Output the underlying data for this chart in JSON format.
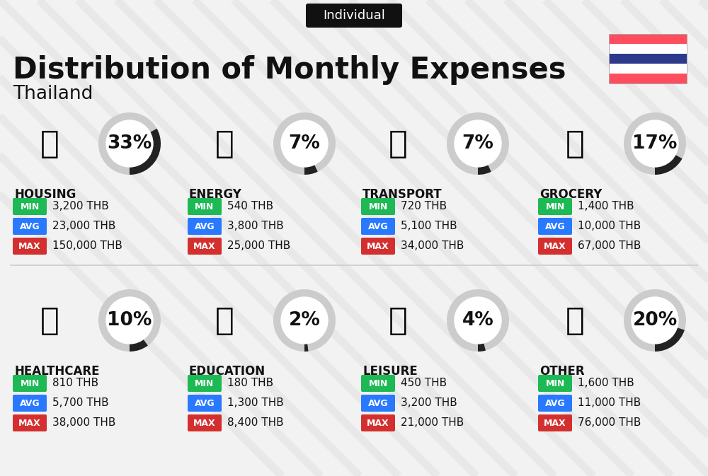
{
  "title": "Distribution of Monthly Expenses",
  "subtitle": "Thailand",
  "tag": "Individual",
  "background_color": "#f2f2f2",
  "categories": [
    {
      "name": "HOUSING",
      "percent": 33,
      "min": "3,200 THB",
      "avg": "23,000 THB",
      "max": "150,000 THB",
      "row": 0,
      "col": 0
    },
    {
      "name": "ENERGY",
      "percent": 7,
      "min": "540 THB",
      "avg": "3,800 THB",
      "max": "25,000 THB",
      "row": 0,
      "col": 1
    },
    {
      "name": "TRANSPORT",
      "percent": 7,
      "min": "720 THB",
      "avg": "5,100 THB",
      "max": "34,000 THB",
      "row": 0,
      "col": 2
    },
    {
      "name": "GROCERY",
      "percent": 17,
      "min": "1,400 THB",
      "avg": "10,000 THB",
      "max": "67,000 THB",
      "row": 0,
      "col": 3
    },
    {
      "name": "HEALTHCARE",
      "percent": 10,
      "min": "810 THB",
      "avg": "5,700 THB",
      "max": "38,000 THB",
      "row": 1,
      "col": 0
    },
    {
      "name": "EDUCATION",
      "percent": 2,
      "min": "180 THB",
      "avg": "1,300 THB",
      "max": "8,400 THB",
      "row": 1,
      "col": 1
    },
    {
      "name": "LEISURE",
      "percent": 4,
      "min": "450 THB",
      "avg": "3,200 THB",
      "max": "21,000 THB",
      "row": 1,
      "col": 2
    },
    {
      "name": "OTHER",
      "percent": 20,
      "min": "1,600 THB",
      "avg": "11,000 THB",
      "max": "76,000 THB",
      "row": 1,
      "col": 3
    }
  ],
  "min_color": "#1db954",
  "avg_color": "#2979ff",
  "max_color": "#d32f2f",
  "text_color": "#111111",
  "arc_color": "#222222",
  "arc_bg_color": "#cccccc",
  "flag_red": "#ff4d5e",
  "flag_blue": "#2d3a8c",
  "title_fontsize": 30,
  "subtitle_fontsize": 19,
  "tag_fontsize": 13,
  "cat_fontsize": 12,
  "val_fontsize": 11,
  "pct_fontsize": 19
}
